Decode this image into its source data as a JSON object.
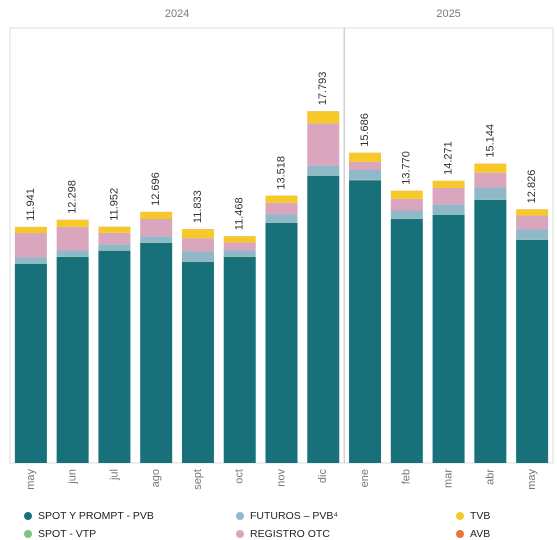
{
  "chart_data": {
    "type": "stacked_bar",
    "groups": [
      {
        "label": "2024",
        "count": 8
      },
      {
        "label": "2025",
        "count": 5
      }
    ],
    "categories": [
      "may",
      "jun",
      "jul",
      "ago",
      "sept",
      "oct",
      "nov",
      "dic",
      "ene",
      "feb",
      "mar",
      "abr",
      "may"
    ],
    "ylim": [
      0,
      22
    ],
    "series": [
      {
        "name": "SPOT Y PROMPT - PVB",
        "color": "#17707a",
        "values": [
          10.08,
          10.43,
          10.74,
          11.14,
          10.18,
          10.43,
          12.15,
          14.52,
          14.3,
          12.35,
          12.55,
          13.31,
          11.29
        ]
      },
      {
        "name": "SPOT - VTP",
        "color": "#7cc47f",
        "values": [
          0.02,
          0.02,
          0.02,
          0.02,
          0.02,
          0.02,
          0.02,
          0.02,
          0.02,
          0.02,
          0.02,
          0.02,
          0.02
        ]
      },
      {
        "name": "FUTUROS – PVB⁴",
        "color": "#8fb8c8",
        "values": [
          0.3,
          0.3,
          0.3,
          0.3,
          0.5,
          0.3,
          0.4,
          0.5,
          0.5,
          0.4,
          0.5,
          0.6,
          0.5
        ]
      },
      {
        "name": "REGISTRO OTC",
        "color": "#d9a6bd",
        "values": [
          1.23,
          1.19,
          0.58,
          0.88,
          0.67,
          0.41,
          0.59,
          2.14,
          0.41,
          0.59,
          0.84,
          0.75,
          0.71
        ]
      },
      {
        "name": "TVB",
        "color": "#f6c928",
        "values": [
          0.3,
          0.35,
          0.3,
          0.35,
          0.45,
          0.3,
          0.35,
          0.6,
          0.45,
          0.4,
          0.35,
          0.45,
          0.3
        ]
      },
      {
        "name": "AVB",
        "color": "#e8763a",
        "values": [
          0.01,
          0.01,
          0.01,
          0.01,
          0.01,
          0.01,
          0.01,
          0.01,
          0.01,
          0.01,
          0.01,
          0.01,
          0.01
        ]
      }
    ],
    "value_labels": [
      "11.941",
      "12.298",
      "11.952",
      "12.696",
      "11.833",
      "11.468",
      "13.518",
      "17.793",
      "15.686",
      "13.770",
      "14.271",
      "15.144",
      "12.826"
    ]
  }
}
